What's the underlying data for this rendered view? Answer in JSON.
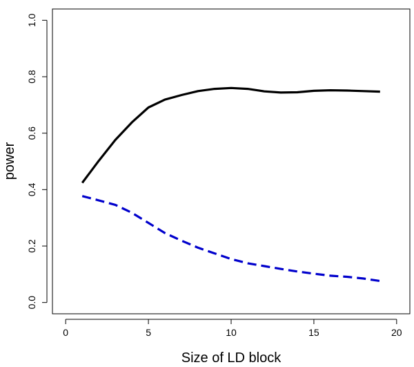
{
  "chart_data": {
    "type": "line",
    "title": "",
    "xlabel": "Size of LD block",
    "ylabel": "power",
    "xlim": [
      -0.8,
      20.8
    ],
    "ylim": [
      -0.04,
      1.04
    ],
    "x_ticks": [
      0,
      5,
      10,
      15,
      20
    ],
    "y_ticks": [
      0.0,
      0.2,
      0.4,
      0.6,
      0.8,
      1.0
    ],
    "x_tick_labels": [
      "0",
      "5",
      "10",
      "15",
      "20"
    ],
    "y_tick_labels": [
      "0.0",
      "0.2",
      "0.4",
      "0.6",
      "0.8",
      "1.0"
    ],
    "grid": false,
    "legend": "none",
    "x": [
      1,
      2,
      3,
      4,
      5,
      6,
      7,
      8,
      9,
      10,
      11,
      12,
      13,
      14,
      15,
      16,
      17,
      18,
      19
    ],
    "series": [
      {
        "style": "solid",
        "color": "#000000",
        "values": [
          0.424,
          0.502,
          0.576,
          0.638,
          0.691,
          0.719,
          0.735,
          0.749,
          0.757,
          0.76,
          0.757,
          0.748,
          0.744,
          0.745,
          0.75,
          0.752,
          0.751,
          0.749,
          0.747
        ]
      },
      {
        "style": "dashed",
        "color": "#0000cc",
        "values": [
          0.377,
          0.362,
          0.346,
          0.318,
          0.282,
          0.246,
          0.219,
          0.194,
          0.174,
          0.154,
          0.139,
          0.129,
          0.119,
          0.11,
          0.102,
          0.095,
          0.091,
          0.085,
          0.076
        ]
      }
    ]
  }
}
